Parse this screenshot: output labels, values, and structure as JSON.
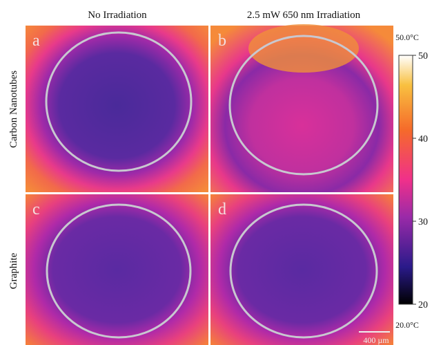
{
  "columns": [
    "No Irradiation",
    "2.5 mW 650 nm Irradiation"
  ],
  "rows": [
    "Carbon Nanotubes",
    "Graphite"
  ],
  "panels": [
    "a",
    "b",
    "c",
    "d"
  ],
  "colorbar": {
    "max_label": "50.0°C",
    "min_label": "20.0°C",
    "lim": [
      20,
      50
    ],
    "ticks": [
      20,
      30,
      40,
      50
    ]
  },
  "scale_bar": "400 µm"
}
